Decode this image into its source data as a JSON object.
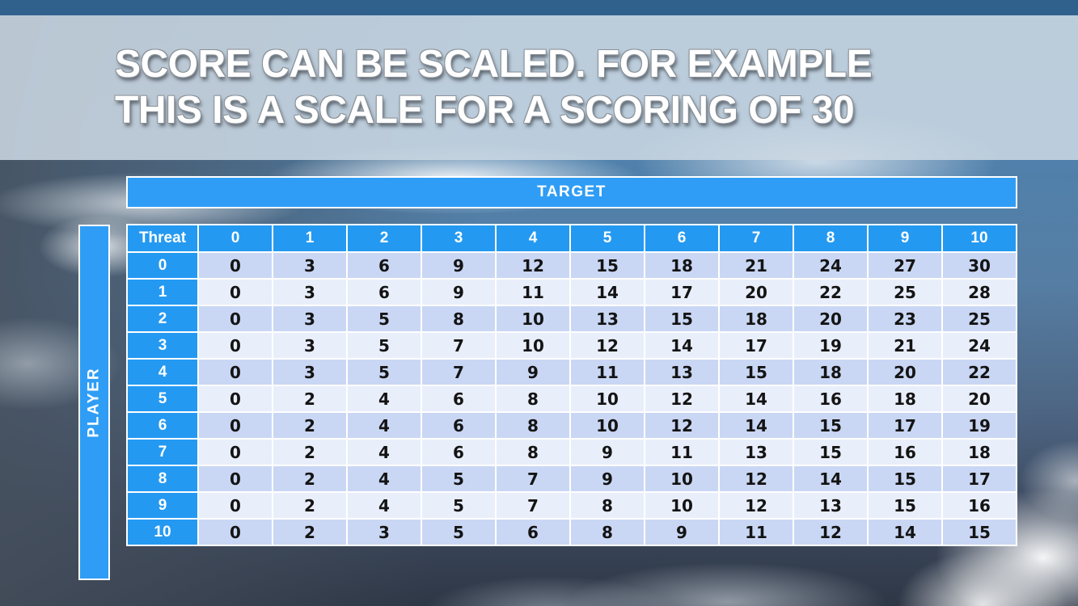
{
  "title": {
    "line1": "SCORE CAN BE SCALED. FOR EXAMPLE",
    "line2": "THIS IS A SCALE FOR A SCORING OF 30"
  },
  "matrix": {
    "target_label": "TARGET",
    "player_label": "PLAYER",
    "corner_label": "Threat",
    "col_headers": [
      "0",
      "1",
      "2",
      "3",
      "4",
      "5",
      "6",
      "7",
      "8",
      "9",
      "10"
    ],
    "rows": [
      {
        "header": "0",
        "values": [
          0,
          3,
          6,
          9,
          12,
          15,
          18,
          21,
          24,
          27,
          30
        ]
      },
      {
        "header": "1",
        "values": [
          0,
          3,
          6,
          9,
          11,
          14,
          17,
          20,
          22,
          25,
          28
        ]
      },
      {
        "header": "2",
        "values": [
          0,
          3,
          5,
          8,
          10,
          13,
          15,
          18,
          20,
          23,
          25
        ]
      },
      {
        "header": "3",
        "values": [
          0,
          3,
          5,
          7,
          10,
          12,
          14,
          17,
          19,
          21,
          24
        ]
      },
      {
        "header": "4",
        "values": [
          0,
          3,
          5,
          7,
          9,
          11,
          13,
          15,
          18,
          20,
          22
        ]
      },
      {
        "header": "5",
        "values": [
          0,
          2,
          4,
          6,
          8,
          10,
          12,
          14,
          16,
          18,
          20
        ]
      },
      {
        "header": "6",
        "values": [
          0,
          2,
          4,
          6,
          8,
          10,
          12,
          14,
          15,
          17,
          19
        ]
      },
      {
        "header": "7",
        "values": [
          0,
          2,
          4,
          6,
          8,
          9,
          11,
          13,
          15,
          16,
          18
        ]
      },
      {
        "header": "8",
        "values": [
          0,
          2,
          4,
          5,
          7,
          9,
          10,
          12,
          14,
          15,
          17
        ]
      },
      {
        "header": "9",
        "values": [
          0,
          2,
          4,
          5,
          7,
          8,
          10,
          12,
          13,
          15,
          16
        ]
      },
      {
        "header": "10",
        "values": [
          0,
          2,
          3,
          5,
          6,
          8,
          9,
          11,
          12,
          14,
          15
        ]
      }
    ]
  },
  "colors": {
    "accent_blue": "#2499f2",
    "table_bar_blue": "#2f9df5",
    "row_even": "#c9d7f4",
    "row_odd": "#e9eefb",
    "top_bar": "#30618d",
    "title_band": "#cbd7e2",
    "cell_text": "#141414",
    "header_text": "#ffffff"
  }
}
